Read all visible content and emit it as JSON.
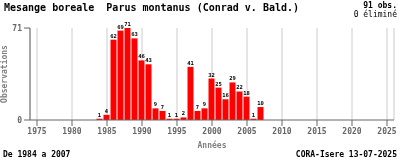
{
  "chart_data": {
    "type": "bar",
    "title": "Mesange boreale  Parus montanus (Conrad v. Bald.)",
    "xlabel": "Années",
    "ylabel": "Observations",
    "annotations": [
      "91 obs.",
      "0 éliminé",
      "De 1984 a 2007",
      "CORA-Isere 13-07-2025"
    ],
    "x": [
      1984,
      1985,
      1986,
      1987,
      1988,
      1989,
      1990,
      1991,
      1992,
      1993,
      1994,
      1995,
      1996,
      1997,
      1998,
      1999,
      2000,
      2001,
      2002,
      2003,
      2004,
      2005,
      2006,
      2007
    ],
    "values": [
      1,
      4,
      62,
      69,
      71,
      63,
      46,
      43,
      9,
      7,
      1,
      1,
      2,
      41,
      7,
      9,
      32,
      25,
      16,
      29,
      22,
      18,
      1,
      10
    ],
    "color": "#ff0000",
    "xlim": [
      1974,
      2026
    ],
    "xticks": [
      1975,
      1980,
      1985,
      1990,
      1995,
      2000,
      2005,
      2010,
      2015,
      2020,
      2025
    ],
    "ylim": [
      0,
      71
    ],
    "yticks": [
      0,
      71
    ],
    "grid": true,
    "data_labels": true
  }
}
